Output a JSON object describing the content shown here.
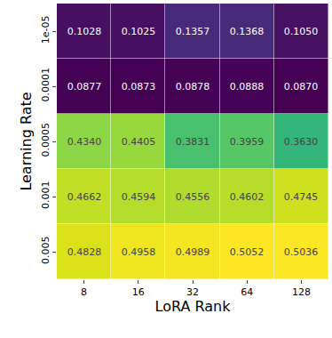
{
  "chart_data": {
    "type": "heatmap",
    "x_label": "LoRA Rank",
    "y_label": "Learning Rate",
    "x": [
      "8",
      "16",
      "32",
      "64",
      "128"
    ],
    "y": [
      "1e-05",
      "0.0001",
      "0.0005",
      "0.001",
      "0.005"
    ],
    "cells": [
      [
        0.1028,
        0.1025,
        0.1357,
        0.1368,
        0.105
      ],
      [
        0.0877,
        0.0873,
        0.0878,
        0.0888,
        0.087
      ],
      [
        0.434,
        0.4405,
        0.3831,
        0.3959,
        0.363
      ],
      [
        0.4662,
        0.4594,
        0.4556,
        0.4602,
        0.4745
      ],
      [
        0.4828,
        0.4958,
        0.4989,
        0.5052,
        0.5036
      ]
    ],
    "value_labels": [
      [
        "0.1028",
        "0.1025",
        "0.1357",
        "0.1368",
        "0.1050"
      ],
      [
        "0.0877",
        "0.0873",
        "0.0878",
        "0.0888",
        "0.0870"
      ],
      [
        "0.4340",
        "0.4405",
        "0.3831",
        "0.3959",
        "0.3630"
      ],
      [
        "0.4662",
        "0.4594",
        "0.4556",
        "0.4602",
        "0.4745"
      ],
      [
        "0.4828",
        "0.4958",
        "0.4989",
        "0.5052",
        "0.5036"
      ]
    ],
    "data_labels": true,
    "color": "viridis"
  }
}
